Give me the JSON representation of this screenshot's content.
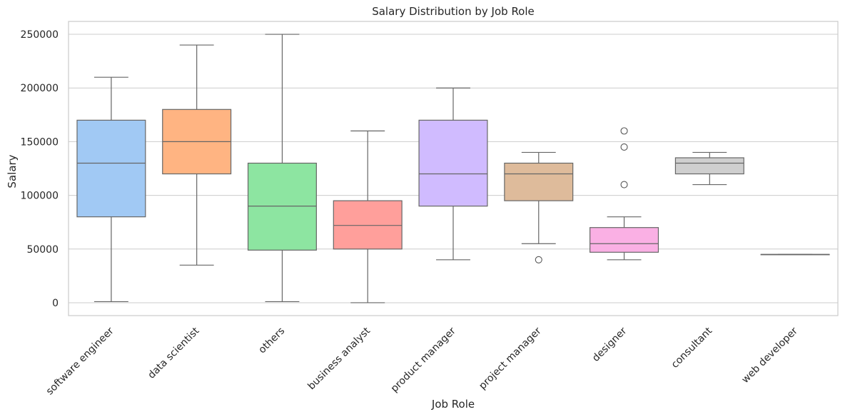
{
  "chart_data": {
    "type": "box",
    "title": "Salary Distribution by Job Role",
    "xlabel": "Job Role",
    "ylabel": "Salary",
    "ylim": [
      -12000,
      262000
    ],
    "yticks": [
      0,
      50000,
      100000,
      150000,
      200000,
      250000
    ],
    "grid": true,
    "categories": [
      "software engineer",
      "data scientist",
      "others",
      "business analyst",
      "product manager",
      "project manager",
      "designer",
      "consultant",
      "web developer"
    ],
    "colors": [
      "#a1c9f4",
      "#ffb482",
      "#8de5a1",
      "#ff9f9b",
      "#d0bbff",
      "#debb9b",
      "#fab0e4",
      "#cfcfcf",
      "#fffea3"
    ],
    "boxes": [
      {
        "whislo": 1000,
        "q1": 80000,
        "median": 130000,
        "q3": 170000,
        "whishi": 210000,
        "fliers": []
      },
      {
        "whislo": 35000,
        "q1": 120000,
        "median": 150000,
        "q3": 180000,
        "whishi": 240000,
        "fliers": []
      },
      {
        "whislo": 1000,
        "q1": 49000,
        "median": 90000,
        "q3": 130000,
        "whishi": 250000,
        "fliers": []
      },
      {
        "whislo": 0,
        "q1": 50000,
        "median": 72000,
        "q3": 95000,
        "whishi": 160000,
        "fliers": []
      },
      {
        "whislo": 40000,
        "q1": 90000,
        "median": 120000,
        "q3": 170000,
        "whishi": 200000,
        "fliers": []
      },
      {
        "whislo": 55000,
        "q1": 95000,
        "median": 120000,
        "q3": 130000,
        "whishi": 140000,
        "fliers": [
          40000
        ]
      },
      {
        "whislo": 40000,
        "q1": 47000,
        "median": 55000,
        "q3": 70000,
        "whishi": 80000,
        "fliers": [
          110000,
          145000,
          160000
        ]
      },
      {
        "whislo": 110000,
        "q1": 120000,
        "median": 130000,
        "q3": 135000,
        "whishi": 140000,
        "fliers": []
      },
      {
        "whislo": 45000,
        "q1": 45000,
        "median": 45000,
        "q3": 45000,
        "whishi": 45000,
        "fliers": []
      }
    ]
  }
}
